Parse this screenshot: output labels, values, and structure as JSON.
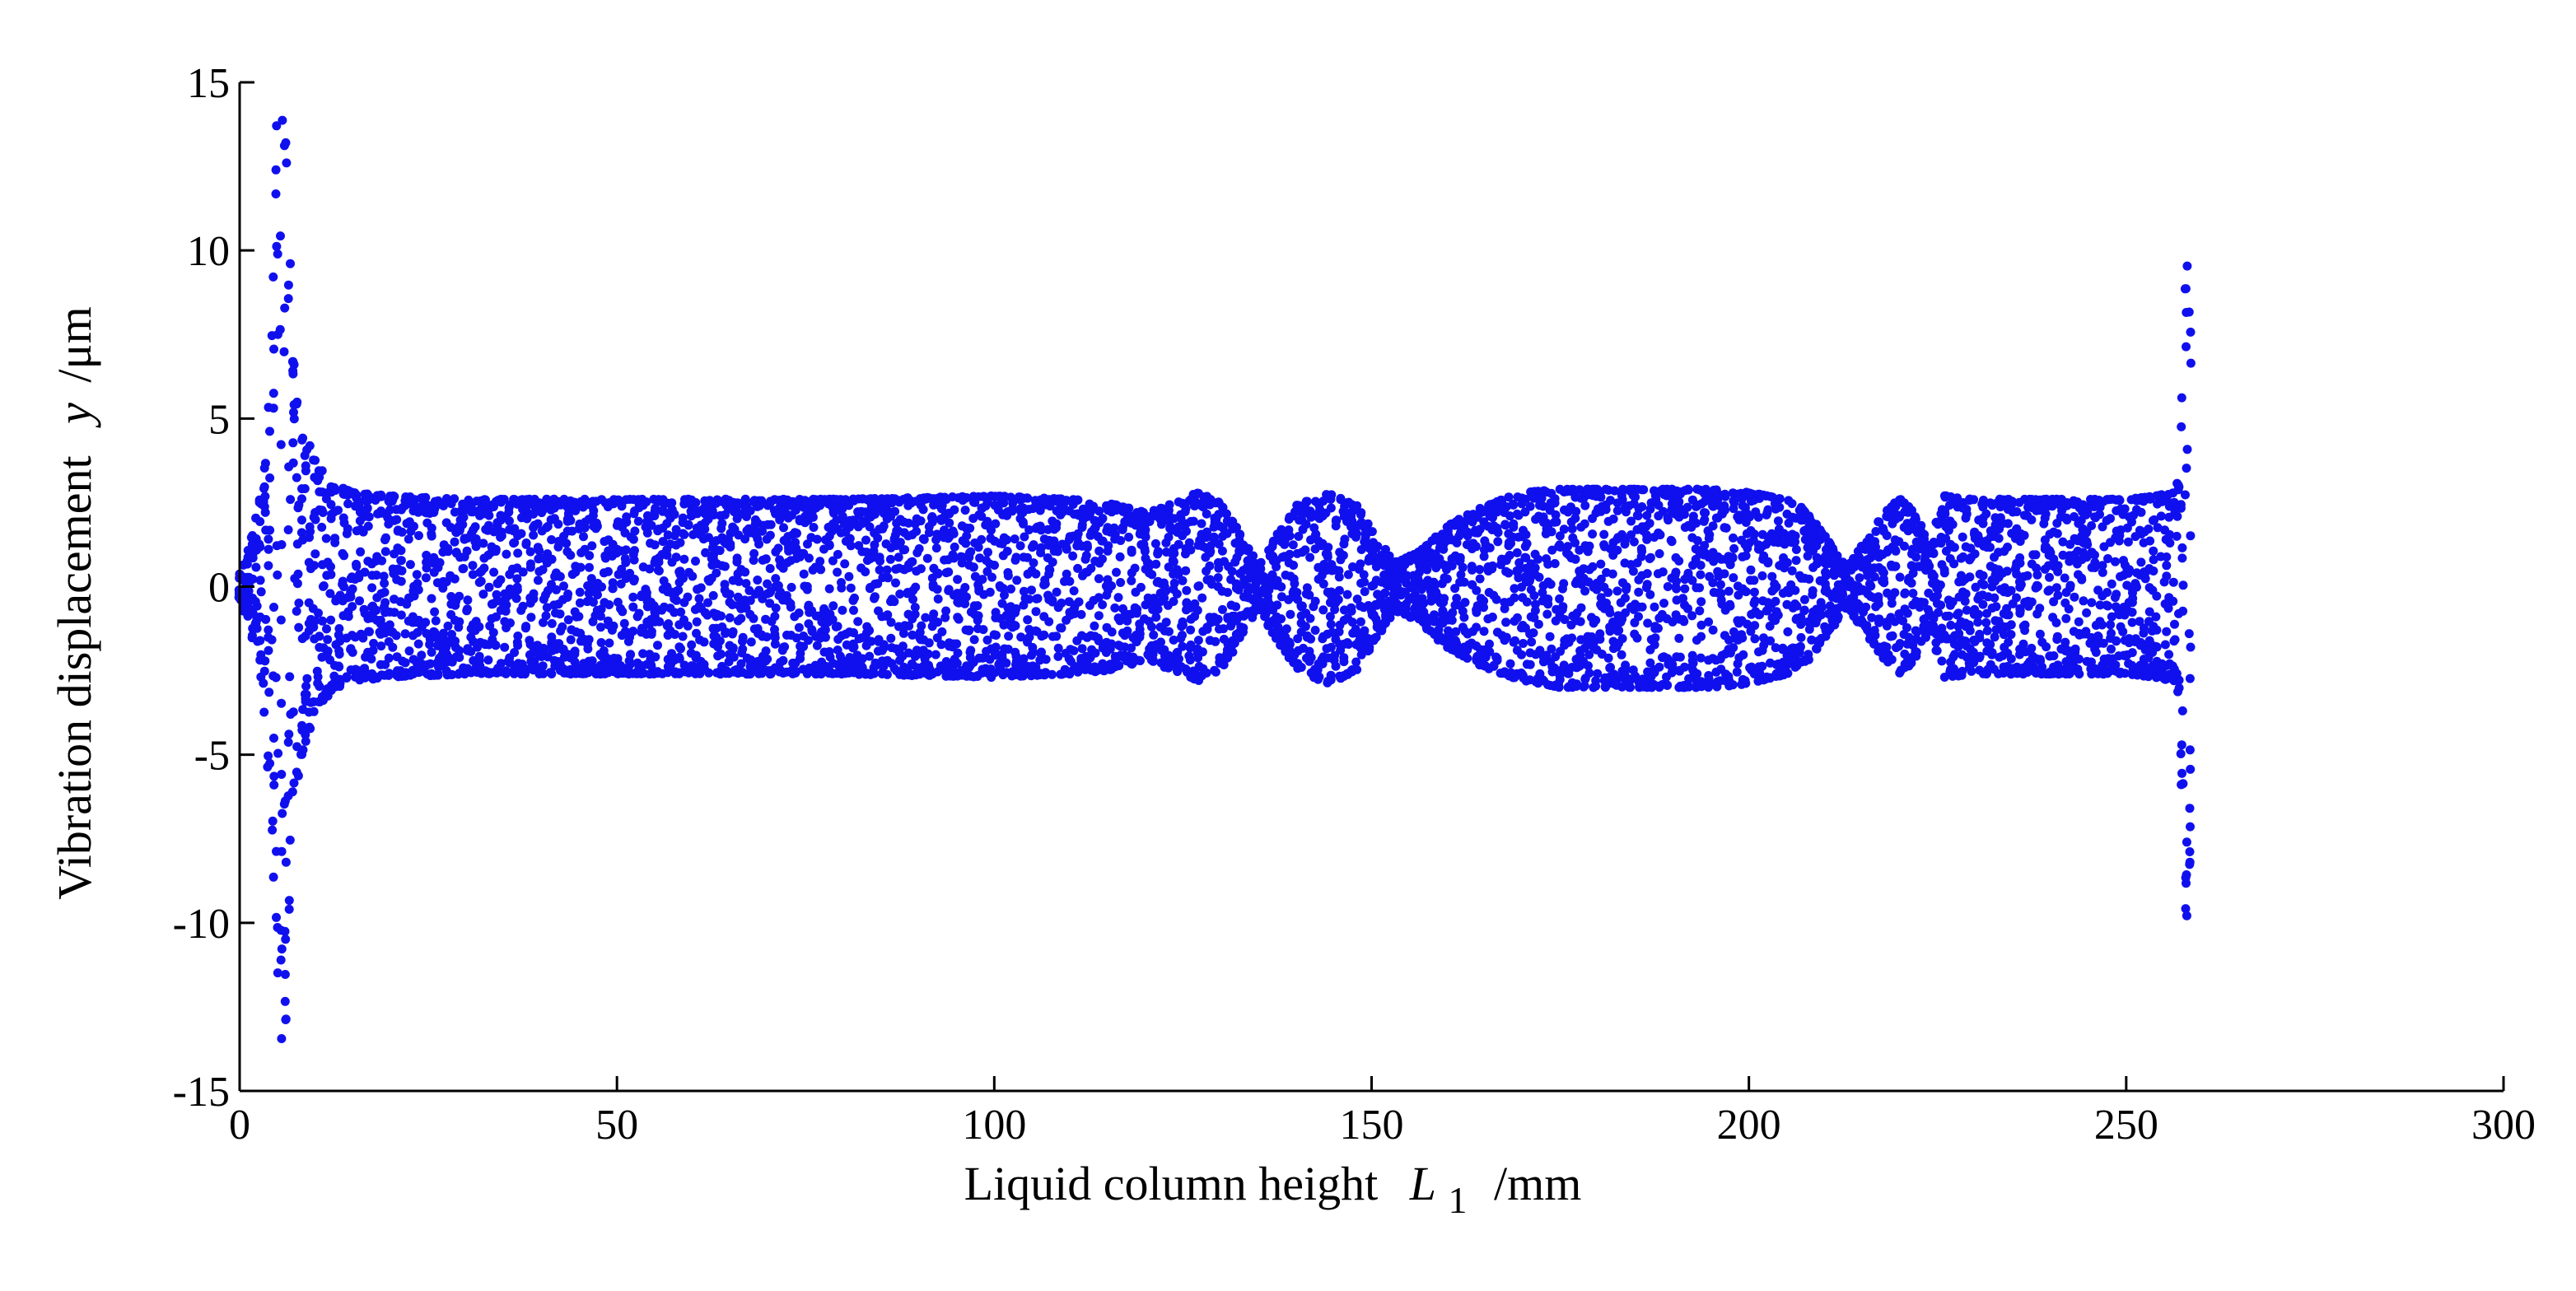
{
  "chart_data": {
    "type": "scatter",
    "title": "",
    "xlabel": {
      "text": "Liquid column height",
      "symbol": "L",
      "subscript": "1",
      "unit": "/mm"
    },
    "ylabel": {
      "text": "Vibration displacement",
      "symbol": "y",
      "unit": "/μm"
    },
    "xlim": [
      0,
      300
    ],
    "ylim": [
      -15,
      15
    ],
    "xticks": [
      0,
      50,
      100,
      150,
      200,
      250,
      300
    ],
    "yticks": [
      15,
      10,
      5,
      0,
      -5,
      -10,
      -15
    ],
    "xtick_labels": [
      "0",
      "50",
      "100",
      "150",
      "200",
      "250",
      "300"
    ],
    "ytick_labels": [
      "15",
      "10",
      "5",
      "0",
      "-5",
      "-10",
      "-15"
    ],
    "grid": false,
    "legend": "none",
    "marker_color": "#1010ee",
    "series": [
      {
        "envelope": {
          "description_free": true,
          "x": [
            0,
            1,
            2,
            3,
            4,
            5,
            6,
            7,
            8,
            10,
            12,
            15,
            20,
            30,
            50,
            80,
            100,
            110,
            115,
            120,
            124,
            127,
            130,
            133,
            135,
            137,
            140,
            144,
            148,
            151,
            153,
            156,
            160,
            165,
            170,
            175,
            185,
            195,
            200,
            205,
            208,
            211,
            213,
            215,
            218,
            220,
            222,
            224,
            226,
            230,
            240,
            250,
            254,
            256,
            257,
            258,
            258.3,
            258.6,
            259
          ],
          "upper": [
            0.4,
            1.0,
            1.8,
            3.0,
            5.8,
            14.4,
            13.6,
            7.0,
            5.0,
            3.8,
            3.1,
            2.8,
            2.7,
            2.6,
            2.6,
            2.6,
            2.7,
            2.6,
            2.5,
            2.2,
            2.5,
            2.8,
            2.5,
            1.4,
            0.6,
            1.4,
            2.4,
            2.8,
            2.4,
            1.4,
            0.7,
            1.0,
            1.8,
            2.4,
            2.8,
            2.9,
            2.9,
            2.9,
            2.8,
            2.6,
            2.2,
            1.2,
            0.6,
            1.2,
            2.2,
            2.6,
            2.2,
            1.2,
            2.7,
            2.6,
            2.6,
            2.6,
            2.7,
            2.8,
            3.2,
            10.0,
            9.5,
            7.5,
            3.0
          ],
          "lower": [
            -0.4,
            -1.0,
            -1.8,
            -3.0,
            -5.8,
            -13.8,
            -13.2,
            -7.2,
            -5.2,
            -3.8,
            -3.1,
            -2.8,
            -2.7,
            -2.6,
            -2.6,
            -2.6,
            -2.7,
            -2.6,
            -2.5,
            -2.2,
            -2.5,
            -2.8,
            -2.5,
            -1.4,
            -0.6,
            -1.4,
            -2.4,
            -2.9,
            -2.5,
            -1.4,
            -0.7,
            -1.0,
            -1.8,
            -2.4,
            -2.8,
            -3.0,
            -3.0,
            -3.0,
            -2.9,
            -2.6,
            -2.2,
            -1.2,
            -0.6,
            -1.2,
            -2.2,
            -2.6,
            -2.2,
            -1.2,
            -2.7,
            -2.6,
            -2.6,
            -2.6,
            -2.7,
            -2.8,
            -3.2,
            -10.3,
            -9.8,
            -7.5,
            -3.0
          ]
        },
        "sample_step_mm": 0.55,
        "points_per_sample": 14
      }
    ]
  }
}
